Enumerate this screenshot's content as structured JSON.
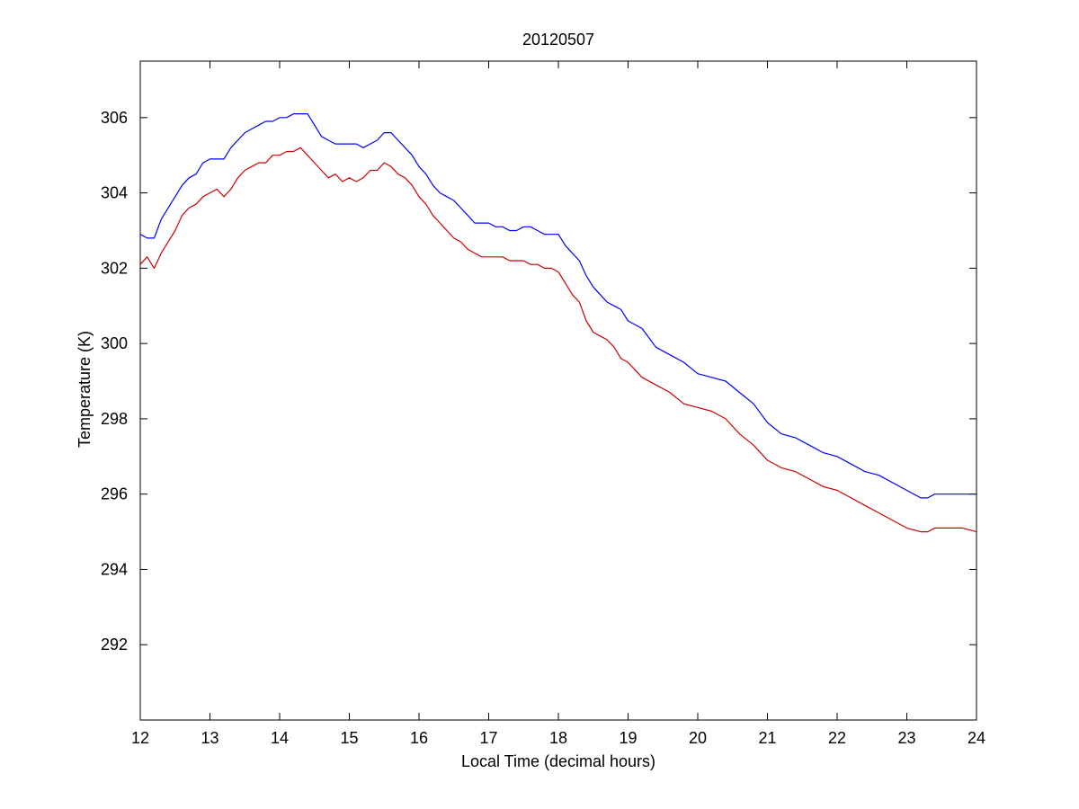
{
  "chart_data": {
    "type": "line",
    "title": "20120507",
    "xlabel": "Local Time (decimal hours)",
    "ylabel": "Temperature (K)",
    "xlim": [
      12,
      24
    ],
    "ylim": [
      290,
      307.5
    ],
    "xticks": [
      12,
      13,
      14,
      15,
      16,
      17,
      18,
      19,
      20,
      21,
      22,
      23,
      24
    ],
    "yticks": [
      292,
      294,
      296,
      298,
      300,
      302,
      304,
      306
    ],
    "grid": false,
    "legend": "none",
    "series": [
      {
        "color": "#0000ff",
        "x": [
          12.0,
          12.1,
          12.2,
          12.3,
          12.4,
          12.5,
          12.6,
          12.7,
          12.8,
          12.9,
          13.0,
          13.1,
          13.2,
          13.3,
          13.4,
          13.5,
          13.6,
          13.7,
          13.8,
          13.9,
          14.0,
          14.1,
          14.2,
          14.3,
          14.4,
          14.5,
          14.6,
          14.7,
          14.8,
          14.9,
          15.0,
          15.1,
          15.2,
          15.3,
          15.4,
          15.5,
          15.6,
          15.7,
          15.8,
          15.9,
          16.0,
          16.1,
          16.2,
          16.3,
          16.4,
          16.5,
          16.6,
          16.7,
          16.8,
          16.9,
          17.0,
          17.1,
          17.2,
          17.3,
          17.4,
          17.5,
          17.6,
          17.7,
          17.8,
          17.9,
          18.0,
          18.1,
          18.2,
          18.3,
          18.4,
          18.5,
          18.6,
          18.7,
          18.8,
          18.9,
          19.0,
          19.2,
          19.4,
          19.6,
          19.8,
          20.0,
          20.2,
          20.4,
          20.6,
          20.8,
          21.0,
          21.2,
          21.4,
          21.6,
          21.8,
          22.0,
          22.2,
          22.4,
          22.6,
          22.8,
          23.0,
          23.2,
          23.3,
          23.4,
          23.6,
          23.8,
          24.0
        ],
        "y": [
          302.9,
          302.8,
          302.8,
          303.3,
          303.6,
          303.9,
          304.2,
          304.4,
          304.5,
          304.8,
          304.9,
          304.9,
          304.9,
          305.2,
          305.4,
          305.6,
          305.7,
          305.8,
          305.9,
          305.9,
          306.0,
          306.0,
          306.1,
          306.1,
          306.1,
          305.8,
          305.5,
          305.4,
          305.3,
          305.3,
          305.3,
          305.3,
          305.2,
          305.3,
          305.4,
          305.6,
          305.6,
          305.4,
          305.2,
          305.0,
          304.7,
          304.5,
          304.2,
          304.0,
          303.9,
          303.8,
          303.6,
          303.4,
          303.2,
          303.2,
          303.2,
          303.1,
          303.1,
          303.0,
          303.0,
          303.1,
          303.1,
          303.0,
          302.9,
          302.9,
          302.9,
          302.6,
          302.4,
          302.2,
          301.8,
          301.5,
          301.3,
          301.1,
          301.0,
          300.9,
          300.6,
          300.4,
          299.9,
          299.7,
          299.5,
          299.2,
          299.1,
          299.0,
          298.7,
          298.4,
          297.9,
          297.6,
          297.5,
          297.3,
          297.1,
          297.0,
          296.8,
          296.6,
          296.5,
          296.3,
          296.1,
          295.9,
          295.9,
          296.0,
          296.0,
          296.0,
          296.0
        ]
      },
      {
        "color": "#cc0000",
        "x": [
          12.0,
          12.1,
          12.2,
          12.3,
          12.4,
          12.5,
          12.6,
          12.7,
          12.8,
          12.9,
          13.0,
          13.1,
          13.2,
          13.3,
          13.4,
          13.5,
          13.6,
          13.7,
          13.8,
          13.9,
          14.0,
          14.1,
          14.2,
          14.3,
          14.4,
          14.5,
          14.6,
          14.7,
          14.8,
          14.9,
          15.0,
          15.1,
          15.2,
          15.3,
          15.4,
          15.5,
          15.6,
          15.7,
          15.8,
          15.9,
          16.0,
          16.1,
          16.2,
          16.3,
          16.4,
          16.5,
          16.6,
          16.7,
          16.8,
          16.9,
          17.0,
          17.1,
          17.2,
          17.3,
          17.4,
          17.5,
          17.6,
          17.7,
          17.8,
          17.9,
          18.0,
          18.1,
          18.2,
          18.3,
          18.4,
          18.5,
          18.6,
          18.7,
          18.8,
          18.9,
          19.0,
          19.2,
          19.4,
          19.6,
          19.8,
          20.0,
          20.2,
          20.4,
          20.6,
          20.8,
          21.0,
          21.2,
          21.4,
          21.6,
          21.8,
          22.0,
          22.2,
          22.4,
          22.6,
          22.8,
          23.0,
          23.2,
          23.3,
          23.4,
          23.6,
          23.8,
          24.0
        ],
        "y": [
          302.1,
          302.3,
          302.0,
          302.4,
          302.7,
          303.0,
          303.4,
          303.6,
          303.7,
          303.9,
          304.0,
          304.1,
          303.9,
          304.1,
          304.4,
          304.6,
          304.7,
          304.8,
          304.8,
          305.0,
          305.0,
          305.1,
          305.1,
          305.2,
          305.0,
          304.8,
          304.6,
          304.4,
          304.5,
          304.3,
          304.4,
          304.3,
          304.4,
          304.6,
          304.6,
          304.8,
          304.7,
          304.5,
          304.4,
          304.2,
          303.9,
          303.7,
          303.4,
          303.2,
          303.0,
          302.8,
          302.7,
          302.5,
          302.4,
          302.3,
          302.3,
          302.3,
          302.3,
          302.2,
          302.2,
          302.2,
          302.1,
          302.1,
          302.0,
          302.0,
          301.9,
          301.6,
          301.3,
          301.1,
          300.6,
          300.3,
          300.2,
          300.1,
          299.9,
          299.6,
          299.5,
          299.1,
          298.9,
          298.7,
          298.4,
          298.3,
          298.2,
          298.0,
          297.6,
          297.3,
          296.9,
          296.7,
          296.6,
          296.4,
          296.2,
          296.1,
          295.9,
          295.7,
          295.5,
          295.3,
          295.1,
          295.0,
          295.0,
          295.1,
          295.1,
          295.1,
          295.0
        ]
      }
    ]
  }
}
